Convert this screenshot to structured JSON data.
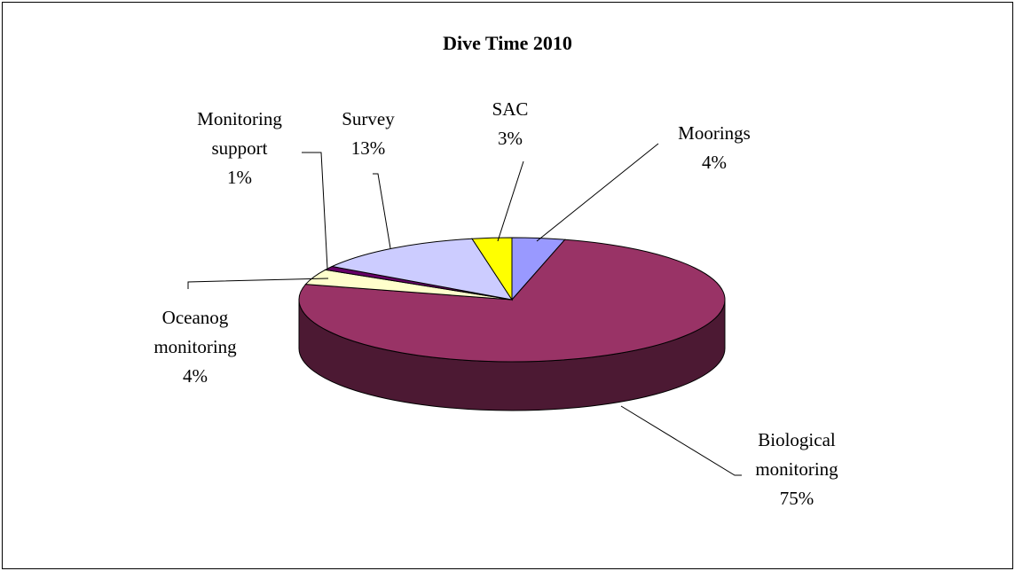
{
  "chart_data": {
    "type": "pie",
    "title": "Dive Time 2010",
    "categories": [
      "Moorings",
      "Biological monitoring",
      "Oceanog monitoring",
      "Monitoring support",
      "Survey",
      "SAC"
    ],
    "values": [
      4,
      75,
      4,
      1,
      13,
      3
    ],
    "value_labels": [
      "4%",
      "75%",
      "4%",
      "1%",
      "13%",
      "3%"
    ],
    "colors": [
      "#9999ff",
      "#993366",
      "#ffffcc",
      "#660066",
      "#ccccff",
      "#ffff00"
    ]
  }
}
